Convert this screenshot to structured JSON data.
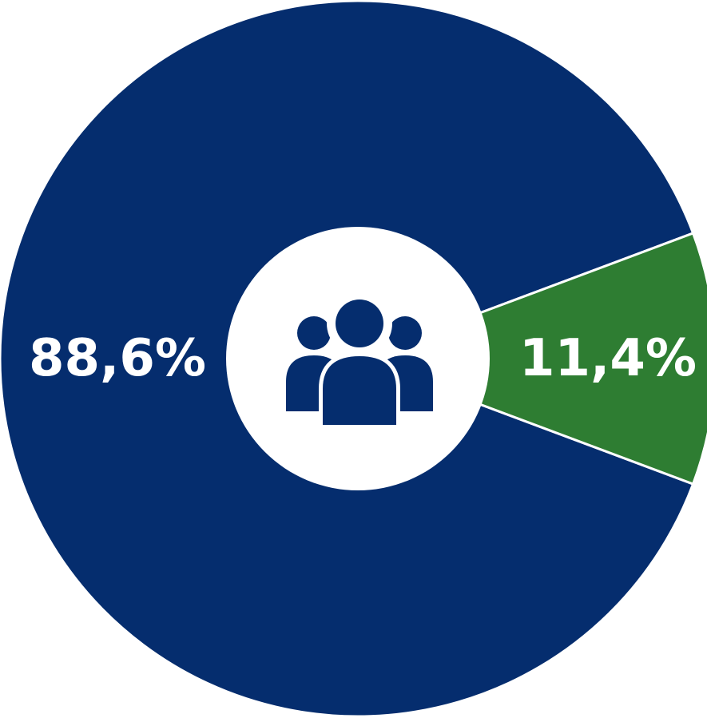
{
  "chart_data": {
    "type": "pie",
    "style": "donut",
    "categories": [
      "",
      ""
    ],
    "values": [
      88.6,
      11.4
    ],
    "value_labels": [
      "88,6%",
      "11,4%"
    ],
    "colors": [
      "#052D6E",
      "#2E7D32"
    ],
    "center_icon": "users-group-icon",
    "icon_color": "#052D6E",
    "background_color": "#FFFFFF",
    "title": "",
    "legend": false
  }
}
